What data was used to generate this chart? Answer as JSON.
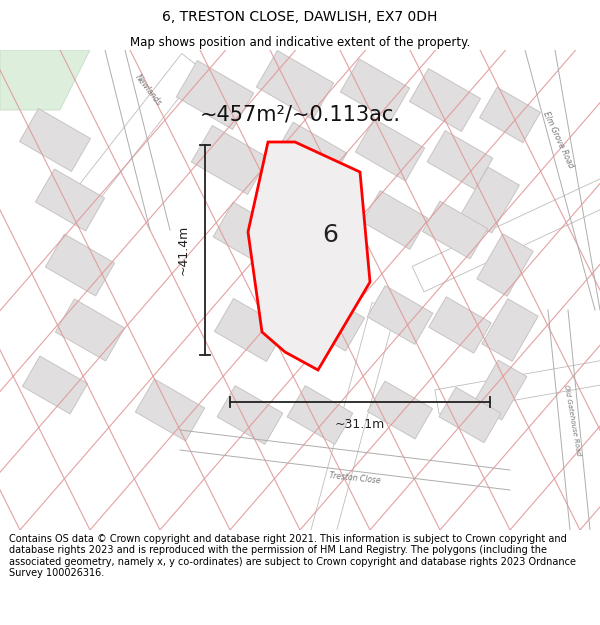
{
  "title": "6, TRESTON CLOSE, DAWLISH, EX7 0DH",
  "subtitle": "Map shows position and indicative extent of the property.",
  "footer": "Contains OS data © Crown copyright and database right 2021. This information is subject to Crown copyright and database rights 2023 and is reproduced with the permission of HM Land Registry. The polygons (including the associated geometry, namely x, y co-ordinates) are subject to Crown copyright and database rights 2023 Ordnance Survey 100026316.",
  "area_text": "~457m²/~0.113ac.",
  "plot_number": "6",
  "dim_width": "~31.1m",
  "dim_height": "~41.4m",
  "title_fontsize": 10,
  "subtitle_fontsize": 8.5,
  "footer_fontsize": 7.0,
  "map_bg": "#f2f0f0",
  "block_fill": "#e0dede",
  "block_edge": "#c8c4c4",
  "road_fill": "#ffffff",
  "road_edge": "#c0bcbc",
  "cadastral_color": "#e09898",
  "property_fill": "#f0eeee",
  "property_edge": "#ff0000",
  "green_fill": "#ddeedd",
  "dim_color": "#222222",
  "label_color": "#333333"
}
